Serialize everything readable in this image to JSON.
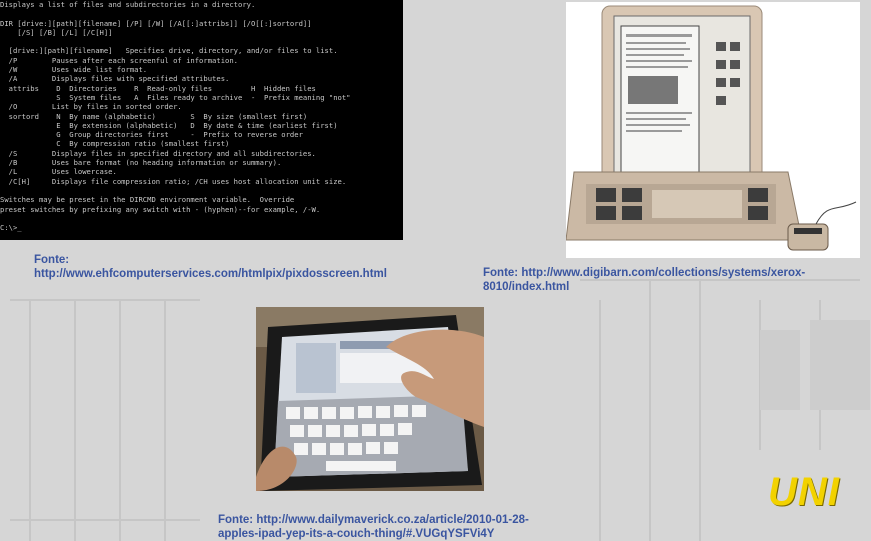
{
  "terminal": {
    "lines": [
      "Displays a list of files and subdirectories in a directory.",
      "",
      "DIR [drive:][path][filename] [/P] [/W] [/A[[:]attribs]] [/O[[:]sortord]]",
      "    [/S] [/B] [/L] [/C[H]]",
      "",
      "  [drive:][path][filename]   Specifies drive, directory, and/or files to list.",
      "  /P        Pauses after each screenful of information.",
      "  /W        Uses wide list format.",
      "  /A        Displays files with specified attributes.",
      "  attribs    D  Directories    R  Read-only files         H  Hidden files",
      "             S  System files   A  Files ready to archive  -  Prefix meaning \"not\"",
      "  /O        List by files in sorted order.",
      "  sortord    N  By name (alphabetic)        S  By size (smallest first)",
      "             E  By extension (alphabetic)   D  By date & time (earliest first)",
      "             G  Group directories first     -  Prefix to reverse order",
      "             C  By compression ratio (smallest first)",
      "  /S        Displays files in specified directory and all subdirectories.",
      "  /B        Uses bare format (no heading information or summary).",
      "  /L        Uses lowercase.",
      "  /C[H]     Displays file compression ratio; /CH uses host allocation unit size.",
      "",
      "Switches may be preset in the DIRCMD environment variable.  Override",
      "preset switches by prefixing any switch with - (hyphen)--for example, /-W.",
      "",
      "C:\\>_"
    ]
  },
  "captions": {
    "dos_label": "Fonte:",
    "dos_url": "http://www.ehfcomputerservices.com/htmlpix/pixdosscreen.html",
    "xerox_label": "Fonte: http://www.digibarn.com/collections/systems/xerox-",
    "xerox_url2": "8010/index.html",
    "ipad_line1": "Fonte: http://www.dailymaverick.co.za/article/2010-01-28-",
    "ipad_line2": "apples-ipad-yep-its-a-couch-thing/#.VUGqYSFVi4Y"
  },
  "logo": {
    "text": "UNI"
  },
  "colors": {
    "caption": "#3a55a0",
    "logo": "#f2d200",
    "background": "#d6d6d6"
  }
}
